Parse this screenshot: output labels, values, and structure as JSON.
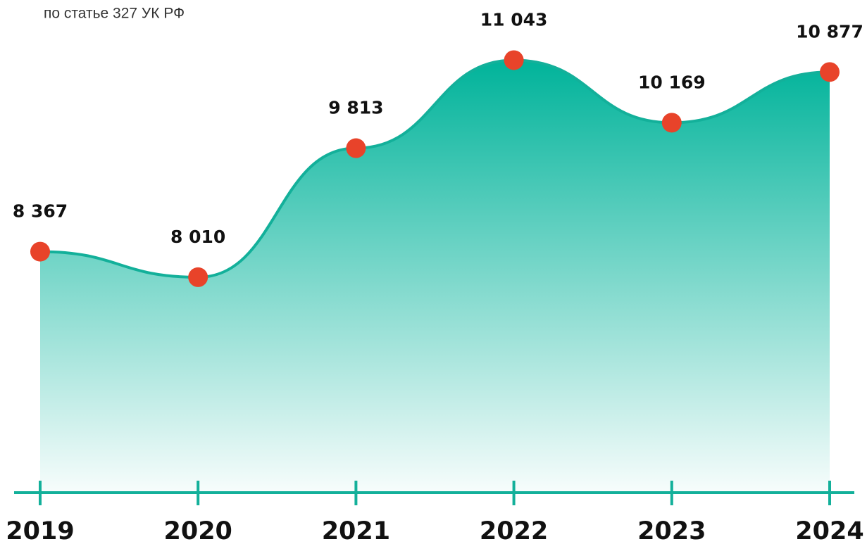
{
  "chart_data": {
    "type": "area",
    "subtitle": "по статье 327 УК РФ",
    "categories": [
      "2019",
      "2020",
      "2021",
      "2022",
      "2023",
      "2024"
    ],
    "values": [
      8367,
      8010,
      9813,
      11043,
      10169,
      10877
    ],
    "value_labels": [
      "8 367",
      "8 010",
      "9 813",
      "11 043",
      "10 169",
      "10 877"
    ],
    "ylim": [
      5000,
      11500
    ],
    "color": "#13b09a",
    "marker_color": "#e8432a"
  }
}
